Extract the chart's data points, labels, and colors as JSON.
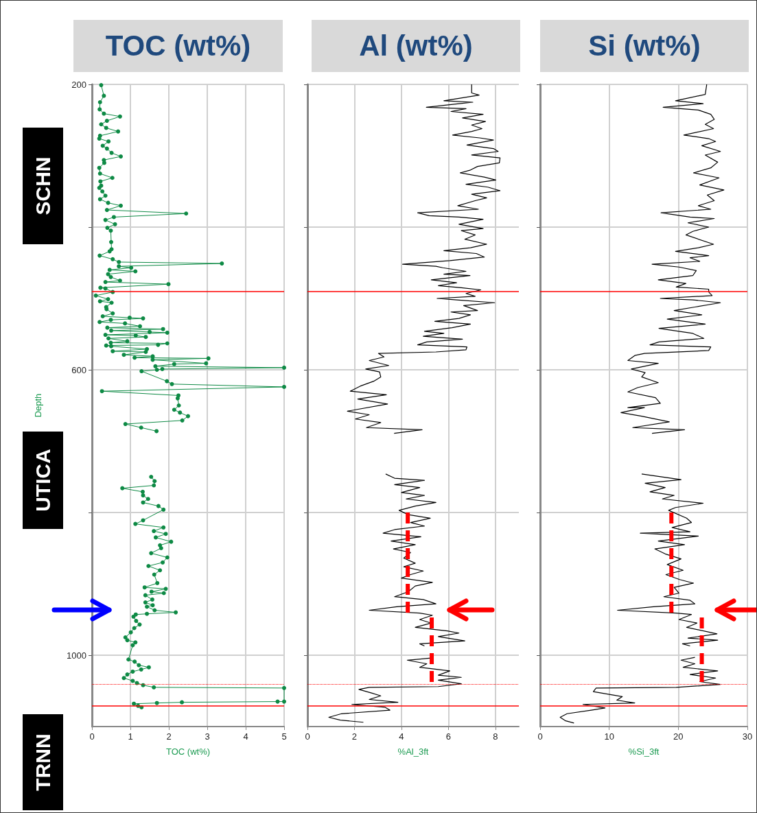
{
  "chart_data": [
    {
      "type": "line",
      "title": "TOC (wt%)",
      "xlabel": "TOC (wt%)",
      "ylabel": "Depth",
      "xlim": [
        0,
        5
      ],
      "xticks": [
        0,
        1,
        2,
        3,
        4,
        5
      ],
      "ylim": [
        1100,
        200
      ],
      "yticks": [
        200,
        {
          "value": 400,
          "label": null
        },
        600,
        {
          "value": 800,
          "label": null
        },
        1000
      ],
      "grid": true,
      "marker": "circle",
      "annotations": [
        "SCHN",
        "UTICA",
        "TRNN"
      ],
      "ref_lines": [
        {
          "axis": "y",
          "value": 490,
          "color": "#ff0000",
          "line_style": "solid"
        },
        {
          "axis": "y",
          "value": 1041,
          "color": "#ff0000",
          "line_style": "dotted"
        },
        {
          "axis": "y",
          "value": 1071,
          "color": "#ff0000",
          "line_style": "solid"
        }
      ],
      "series": [
        {
          "color": "#0e8a45",
          "x": [
            0.24,
            0.31,
            0.21,
            0.2,
            0.31,
            0.73,
            0.39,
            0.24,
            0.37,
            0.68,
            0.21,
            0.19,
            0.43,
            0.28,
            0.39,
            0.51,
            0.75,
            0.31,
            0.32,
            0.19,
            0.21,
            0.53,
            0.22,
            0.24,
            0.19,
            0.27,
            0.35,
            0.21,
            0.42,
            0.75,
            0.39,
            2.45,
            0.57,
            0.35,
            0.6,
            0.4,
            0.49,
            0.5,
            0.51,
            0.46,
            0.2,
            0.54,
            0.7,
            3.38,
            0.7,
            1.02,
            0.46,
            1.13,
            0.42,
            0.49,
            0.73,
            0.35,
            1.99,
            0.22,
            0.35,
            0.54,
            0.1,
            0.42,
            0.21,
            0.51,
            0.37,
            0.38,
            0.54,
            0.28,
            0.98,
            1.33,
            0.49,
            0.2,
            0.86,
            1.25,
            0.4,
            1.85,
            0.5,
            1.5,
            1.96,
            0.35,
            1.14,
            1.4,
            0.43,
            0.92,
            0.49,
            1.96,
            1.72,
            0.37,
            0.5,
            1.43,
            0.54,
            1.4,
            0.83,
            1.58,
            1.11,
            3.03,
            1.58,
            2.97,
            2.14,
            1.65,
            5,
            1.83,
            1.69,
            1.29,
            1.95,
            2.08,
            5,
            0.26,
            2.25,
            2.23,
            2.26,
            2.14,
            2.29,
            2.5,
            2.35,
            0.87,
            1.28,
            1.68,
            null,
            1.54,
            1.63,
            1.61,
            0.79,
            1.32,
            1.33,
            1.46,
            1.33,
            1.73,
            1.86,
            1.33,
            1.13,
            1.86,
            1.61,
            1.92,
            1.66,
            2.06,
            1.77,
            1.8,
            1.54,
            1.96,
            1.84,
            1.47,
            1.77,
            1.62,
            1.7,
            1.37,
            1.92,
            1.55,
            1.87,
            1.39,
            1.57,
            1.39,
            1.58,
            1.43,
            1.63,
            2.18,
            1.43,
            1.14,
            1.08,
            1.15,
            1.24,
            1.1,
            1.01,
            0.87,
            0.92,
            1.13,
            1.06,
            0.95,
            1.11,
            1.22,
            1.48,
            1.28,
            1.06,
            0.92,
            0.83,
            1.06,
            1.17,
            1.33,
            1.61,
            5,
            5,
            4.83,
            2.34,
            1.69,
            1.09,
            1.2,
            1.29
          ],
          "values": [
            201,
            216,
            225,
            235,
            241,
            245,
            251,
            256,
            261,
            266,
            272,
            276,
            280,
            286,
            290,
            296,
            301,
            306,
            310,
            317,
            325,
            331,
            336,
            342,
            345,
            350,
            356,
            361,
            366,
            370,
            376,
            381,
            386,
            390,
            396,
            401,
            405,
            421,
            431,
            434,
            440,
            445,
            449,
            451,
            455,
            457,
            460,
            462,
            466,
            470,
            475,
            477,
            480,
            485,
            486,
            491,
            496,
            501,
            504,
            506,
            512,
            515,
            521,
            525,
            527,
            528,
            530,
            533,
            535,
            539,
            541,
            543,
            545,
            547,
            548,
            551,
            552,
            554,
            556,
            560,
            562,
            563,
            565,
            566,
            567,
            571,
            574,
            575,
            579,
            581,
            583,
            584,
            586,
            591,
            592,
            595,
            597,
            599,
            600,
            602,
            616,
            620,
            624,
            630,
            636,
            640,
            650,
            656,
            660,
            665,
            671,
            676,
            681,
            686,
            null,
            750,
            756,
            762,
            766,
            771,
            776,
            781,
            786,
            791,
            796,
            811,
            816,
            821,
            826,
            830,
            835,
            841,
            846,
            850,
            857,
            863,
            870,
            875,
            881,
            887,
            899,
            905,
            907,
            911,
            913,
            916,
            922,
            926,
            930,
            932,
            937,
            940,
            942,
            943,
            946,
            952,
            957,
            962,
            968,
            975,
            979,
            982,
            986,
            1006,
            1009,
            1014,
            1017,
            1020,
            1023,
            1027,
            1032,
            1036,
            1039,
            1042,
            1045,
            1046,
            1065,
            1065,
            1066,
            1067,
            1068,
            1071,
            1073
          ]
        }
      ]
    },
    {
      "type": "line",
      "title": "Al (wt%)",
      "xlabel": "%Al_3ft",
      "xlim": [
        0,
        9
      ],
      "xticks": [
        0,
        2,
        4,
        6,
        8
      ],
      "ylim": [
        1100,
        200
      ],
      "yticks": [
        200,
        400,
        600,
        800,
        1000
      ],
      "grid": true,
      "tick_labels": "x",
      "marker": "none",
      "ref_lines": [
        {
          "axis": "y",
          "value": 490,
          "color": "#ff0000",
          "line_style": "solid"
        },
        {
          "axis": "y",
          "value": 1041,
          "color": "#ff0000",
          "line_style": "dotted"
        },
        {
          "axis": "y",
          "value": 1071,
          "color": "#ff0000",
          "line_style": "solid"
        }
      ],
      "series": [
        {
          "color": "#000000",
          "x": [
            6.99,
            6.99,
            6.99,
            7.31,
            5.81,
            7.04,
            6.45,
            5.06,
            6.75,
            6.11,
            7.48,
            6.6,
            7.58,
            6.99,
            7.43,
            6.99,
            6.18,
            7.33,
            7.92,
            6.79,
            7.92,
            8.12,
            6.99,
            8.2,
            8.17,
            7.24,
            6.94,
            6.5,
            7.53,
            8.02,
            6.75,
            7.68,
            8.2,
            6.99,
            7.63,
            7.14,
            6.4,
            7.28,
            4.69,
            5.18,
            6.45,
            7.48,
            6.45,
            7.48,
            6.55,
            7.14,
            6.7,
            7.63,
            6.94,
            5.81,
            7.19,
            7.53,
            6.06,
            4.05,
            5.47,
            5.76,
            6.75,
            5.81,
            6.92,
            5.27,
            6.35,
            5.57,
            6.55,
            7.38,
            6.75,
            7.14,
            5.52,
            6.35,
            7.97,
            6.65,
            7.24,
            6.11,
            6.94,
            6.45,
            5.42,
            6.94,
            6.16,
            4.98,
            5.81,
            4.93,
            6.6,
            5.08,
            4.69,
            6.79,
            6.75,
            5.47,
            3.02,
            3.26,
            2.63,
            3.46,
            2.48,
            3.07,
            3.12,
            2.82,
            2.24,
            1.82,
            3.36,
            2.14,
            3.41,
            1.7,
            2.63,
            2.04,
            3.12,
            2.51,
            4.88,
            3.69,
            null,
            3.33,
            3.71,
            4.98,
            3.71,
            4.78,
            4,
            4.98,
            4.2,
            5.47,
            4.59,
            3.9,
            4.29,
            5.23,
            4.39,
            4.98,
            3.71,
            3.22,
            4.83,
            3.56,
            4.59,
            3.66,
            4.39,
            4.1,
            4.59,
            4.1,
            4.93,
            4.39,
            4,
            5.32,
            4.59,
            4.29,
            3.71,
            4.93,
            5.47,
            3.8,
            2.63,
            4.78,
            5.32,
            4.78,
            5.27,
            4.59,
            5.96,
            6.45,
            5.57,
            6.7,
            4.78,
            4.98,
            null,
            5.27,
            4.25,
            5.08,
            4.78,
            6.06,
            5.57,
            6.55,
            5.57,
            6.55,
            5.57,
            2.63,
            2.19,
            2.73,
            3.12,
            2.63,
            3.85,
            1.89,
            3.31,
            3.51,
            1.45,
            0.91,
            1.4,
            2.38
          ],
          "values": [
            200,
            201,
            212,
            215,
            223,
            225,
            227,
            232,
            234,
            238,
            242,
            247,
            252,
            257,
            262,
            266,
            271,
            275,
            278,
            285,
            290,
            294,
            299,
            303,
            310,
            315,
            320,
            324,
            330,
            334,
            340,
            344,
            349,
            354,
            359,
            363,
            370,
            375,
            380,
            384,
            386,
            389,
            396,
            402,
            405,
            411,
            417,
            424,
            429,
            433,
            437,
            442,
            447,
            452,
            455,
            457,
            462,
            466,
            468,
            474,
            478,
            482,
            485,
            488,
            493,
            497,
            500,
            502,
            506,
            510,
            517,
            519,
            523,
            528,
            532,
            536,
            541,
            546,
            549,
            553,
            557,
            561,
            565,
            568,
            572,
            575,
            577,
            582,
            587,
            594,
            599,
            603,
            610,
            616,
            623,
            630,
            635,
            641,
            648,
            658,
            663,
            669,
            674,
            681,
            684,
            689,
            null,
            746,
            752,
            755,
            761,
            765,
            772,
            776,
            781,
            786,
            791,
            797,
            803,
            808,
            814,
            819,
            824,
            829,
            834,
            840,
            845,
            851,
            856,
            864,
            871,
            876,
            882,
            887,
            892,
            898,
            903,
            911,
            918,
            922,
            928,
            932,
            937,
            941,
            944,
            950,
            955,
            961,
            966,
            969,
            974,
            980,
            984,
            987,
            null,
            1004,
            1007,
            1012,
            1017,
            1022,
            1028,
            1031,
            1035,
            1040,
            1044,
            1045,
            1048,
            1053,
            1057,
            1062,
            1066,
            1069,
            1073,
            1077,
            1082,
            1087,
            1091,
            1094
          ]
        },
        {
          "color": "#ff0000",
          "line_style": "dashed",
          "x": [
            4.27,
            4.27
          ],
          "values": [
            800,
            944
          ]
        },
        {
          "color": "#ff0000",
          "line_style": "dashed",
          "x": [
            5.29,
            5.29
          ],
          "values": [
            947,
            1045
          ]
        }
      ]
    },
    {
      "type": "line",
      "title": "Si (wt%)",
      "xlabel": "%Si_3ft",
      "xlim": [
        0,
        30
      ],
      "xticks": [
        0,
        10,
        20,
        30
      ],
      "ylim": [
        1100,
        200
      ],
      "yticks": [
        200,
        400,
        600,
        800,
        1000
      ],
      "grid": true,
      "tick_labels": "x",
      "marker": "none",
      "ref_lines": [
        {
          "axis": "y",
          "value": 490,
          "color": "#ff0000",
          "line_style": "solid"
        },
        {
          "axis": "y",
          "value": 1041,
          "color": "#ff0000",
          "line_style": "dotted"
        },
        {
          "axis": "y",
          "value": 1071,
          "color": "#ff0000",
          "line_style": "solid"
        }
      ],
      "series": [
        {
          "color": "#000000",
          "x": [
            24.1,
            24.1,
            23.9,
            19.6,
            23.6,
            17.8,
            22.9,
            24.7,
            25.2,
            23.9,
            25.1,
            20.8,
            24.4,
            25.4,
            23.4,
            26.1,
            23.9,
            25.7,
            24.7,
            22.2,
            25.9,
            23.1,
            26.6,
            24.2,
            25.2,
            22.9,
            24.7,
            17.5,
            21.7,
            25.2,
            21.4,
            24.4,
            22.1,
            21.1,
            25.1,
            22.9,
            19.6,
            24.4,
            21.7,
            23.1,
            16.2,
            20.1,
            22.6,
            22.1,
            17.1,
            21.1,
            19.7,
            24.4,
            24.4,
            24.9,
            17.4,
            22.1,
            26.1,
            22.4,
            19.4,
            23.4,
            18.4,
            23.9,
            17.2,
            22.1,
            23.7,
            17.2,
            15.9,
            24.7,
            24.4,
            15.1,
            13.7,
            12.7,
            17.1,
            13.2,
            15.2,
            14.7,
            17.1,
            14.1,
            12.7,
            16.7,
            17.4,
            12.7,
            15.1,
            11.7,
            14.7,
            18.7,
            13.4,
            20.9,
            16.2,
            null,
            14.7,
            20.4,
            15.2,
            18.1,
            15.9,
            19.4,
            17.7,
            23.6,
            19.6,
            18.6,
            21.2,
            21.9,
            19.1,
            21.7,
            14.5,
            22.9,
            17.1,
            20.9,
            16.6,
            18.1,
            20.4,
            18.4,
            20.7,
            18.2,
            20.2,
            22.2,
            19.4,
            20.1,
            17.9,
            21.7,
            22.4,
            16.4,
            11.2,
            19.7,
            21.9,
            20.1,
            22.7,
            21.2,
            25.6,
            21.4,
            25.7,
            20.6,
            21.7,
            null,
            22.4,
            20.4,
            22.4,
            20.7,
            25.7,
            21.7,
            25.4,
            23.1,
            26.1,
            19.7,
            8.1,
            7.7,
            11.9,
            11.1,
            13.7,
            6.2,
            9.4,
            7.4,
            3.9,
            2.9,
            3.7,
            4.9
          ],
          "values": [
            200,
            201,
            214,
            223,
            227,
            232,
            236,
            242,
            249,
            256,
            262,
            271,
            276,
            280,
            286,
            294,
            299,
            309,
            317,
            324,
            331,
            341,
            348,
            355,
            363,
            370,
            375,
            380,
            386,
            388,
            394,
            400,
            406,
            411,
            424,
            429,
            434,
            440,
            443,
            448,
            452,
            456,
            461,
            468,
            474,
            479,
            484,
            487,
            491,
            496,
            500,
            502,
            506,
            512,
            517,
            523,
            529,
            536,
            542,
            549,
            556,
            561,
            565,
            568,
            573,
            577,
            580,
            587,
            591,
            599,
            604,
            610,
            618,
            625,
            631,
            639,
            647,
            653,
            653,
            660,
            665,
            673,
            681,
            684,
            689,
            null,
            746,
            754,
            759,
            765,
            771,
            776,
            781,
            787,
            793,
            797,
            808,
            814,
            821,
            827,
            829,
            833,
            840,
            845,
            851,
            858,
            865,
            873,
            881,
            887,
            894,
            899,
            905,
            913,
            918,
            923,
            928,
            932,
            937,
            941,
            943,
            950,
            955,
            961,
            970,
            976,
            979,
            984,
            987,
            null,
            1003,
            1007,
            1012,
            1017,
            1022,
            1027,
            1032,
            1037,
            1041,
            1045,
            1046,
            1051,
            1058,
            1063,
            1067,
            1069,
            1074,
            1077,
            1082,
            1087,
            1092,
            1095
          ]
        },
        {
          "color": "#ff0000",
          "line_style": "dashed",
          "x": [
            19,
            19
          ],
          "values": [
            800,
            944
          ]
        },
        {
          "color": "#ff0000",
          "line_style": "dashed",
          "x": [
            23.4,
            23.4
          ],
          "values": [
            947,
            1045
          ]
        }
      ]
    }
  ]
}
